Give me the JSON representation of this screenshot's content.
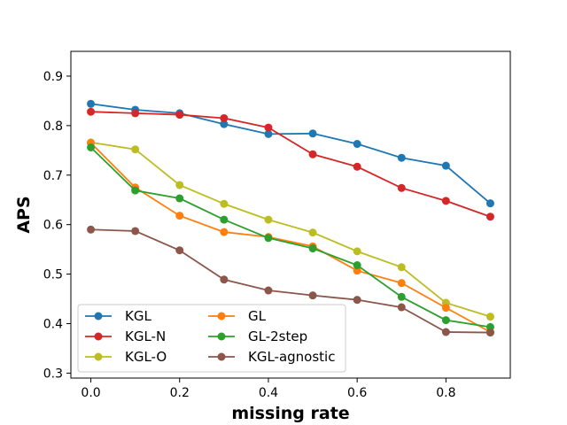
{
  "chart_data": {
    "type": "line",
    "title": "",
    "xlabel": "missing rate",
    "ylabel": "APS",
    "xlim": [
      -0.045,
      0.945
    ],
    "ylim": [
      0.29,
      0.95
    ],
    "xticks": [
      0.0,
      0.2,
      0.4,
      0.6,
      0.8
    ],
    "xtick_labels": [
      "0.0",
      "0.2",
      "0.4",
      "0.6",
      "0.8"
    ],
    "yticks": [
      0.3,
      0.4,
      0.5,
      0.6,
      0.7,
      0.8,
      0.9
    ],
    "ytick_labels": [
      "0.3",
      "0.4",
      "0.5",
      "0.6",
      "0.7",
      "0.8",
      "0.9"
    ],
    "grid": false,
    "legend_position": "lower-left",
    "legend_columns": 2,
    "x": [
      0.0,
      0.1,
      0.2,
      0.3,
      0.4,
      0.5,
      0.6,
      0.7,
      0.8,
      0.9
    ],
    "series": [
      {
        "name": "KGL",
        "color": "#1f77b4",
        "values": [
          0.844,
          0.832,
          0.825,
          0.803,
          0.783,
          0.784,
          0.763,
          0.735,
          0.719,
          0.643
        ]
      },
      {
        "name": "KGL-N",
        "color": "#d62728",
        "values": [
          0.828,
          0.825,
          0.822,
          0.815,
          0.796,
          0.742,
          0.717,
          0.674,
          0.648,
          0.616
        ]
      },
      {
        "name": "KGL-O",
        "color": "#bcbd22",
        "values": [
          0.766,
          0.752,
          0.68,
          0.642,
          0.61,
          0.584,
          0.546,
          0.514,
          0.442,
          0.414
        ]
      },
      {
        "name": "GL",
        "color": "#ff7f0e",
        "values": [
          0.765,
          0.675,
          0.618,
          0.585,
          0.575,
          0.556,
          0.507,
          0.482,
          0.432,
          0.383
        ]
      },
      {
        "name": "GL-2step",
        "color": "#2ca02c",
        "values": [
          0.756,
          0.669,
          0.653,
          0.61,
          0.573,
          0.552,
          0.518,
          0.454,
          0.407,
          0.393
        ]
      },
      {
        "name": "KGL-agnostic",
        "color": "#8c564b",
        "values": [
          0.59,
          0.587,
          0.548,
          0.489,
          0.467,
          0.457,
          0.448,
          0.433,
          0.383,
          0.382
        ]
      }
    ]
  }
}
